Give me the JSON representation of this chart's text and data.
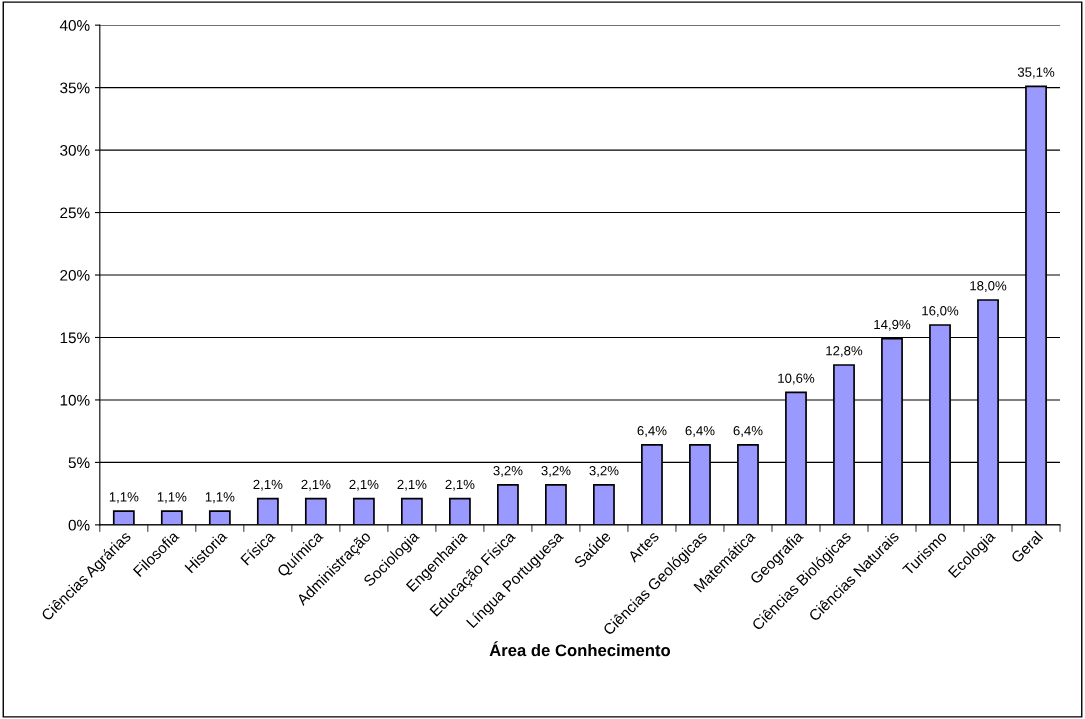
{
  "chart_data": {
    "type": "bar",
    "xlabel": "Área de Conhecimento",
    "categories": [
      "Ciências Agrárias",
      "Filosofia",
      "Historia",
      "Física",
      "Química",
      "Administração",
      "Sociologia",
      "Engenharia",
      "Educação Física",
      "Língua Portuguesa",
      "Saúde",
      "Artes",
      "Ciências Geológicas",
      "Matemática",
      "Geografia",
      "Ciências Biológicas",
      "Ciências Naturais",
      "Turismo",
      "Ecologia",
      "Geral"
    ],
    "values": [
      1.1,
      1.1,
      1.1,
      2.1,
      2.1,
      2.1,
      2.1,
      2.1,
      3.2,
      3.2,
      3.2,
      6.4,
      6.4,
      6.4,
      10.6,
      12.8,
      14.9,
      16.0,
      18.0,
      35.1
    ],
    "value_labels": [
      "1,1%",
      "1,1%",
      "1,1%",
      "2,1%",
      "2,1%",
      "2,1%",
      "2,1%",
      "2,1%",
      "3,2%",
      "3,2%",
      "3,2%",
      "6,4%",
      "6,4%",
      "6,4%",
      "10,6%",
      "12,8%",
      "14,9%",
      "16,0%",
      "18,0%",
      "35,1%"
    ],
    "color": "#9999ff",
    "ylim": [
      0,
      40
    ],
    "yticks": [
      {
        "value": 0,
        "label": "0%"
      },
      {
        "value": 5,
        "label": "5%"
      },
      {
        "value": 10,
        "label": "10%"
      },
      {
        "value": 15,
        "label": "15%"
      },
      {
        "value": 20,
        "label": "20%"
      },
      {
        "value": 25,
        "label": "25%"
      },
      {
        "value": 30,
        "label": "30%"
      },
      {
        "value": 35,
        "label": "35%"
      },
      {
        "value": 40,
        "label": "40%"
      }
    ],
    "grid": "y",
    "legend": false
  }
}
